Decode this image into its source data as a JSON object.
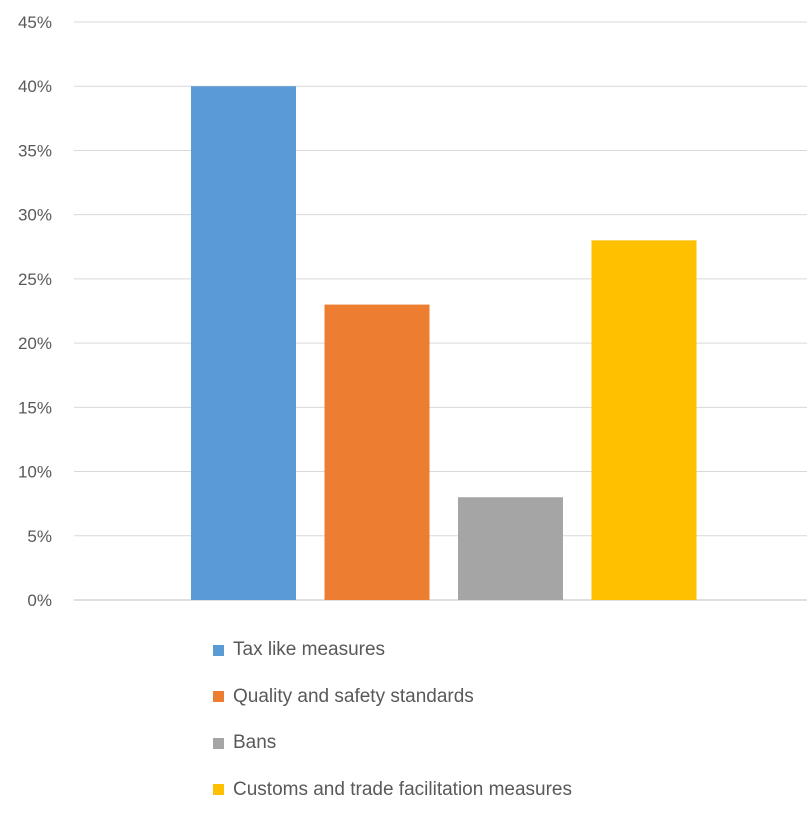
{
  "chart_data": {
    "type": "bar",
    "title": "",
    "xlabel": "",
    "ylabel": "",
    "ylim": [
      0,
      45
    ],
    "y_ticks": [
      0,
      5,
      10,
      15,
      20,
      25,
      30,
      35,
      40,
      45
    ],
    "y_tick_format": "%",
    "grid": true,
    "legend_position": "bottom",
    "series": [
      {
        "name": "Tax like measures",
        "value": 40,
        "color": "#5B9BD5"
      },
      {
        "name": "Quality and safety standards",
        "value": 23,
        "color": "#ED7D31"
      },
      {
        "name": "Bans",
        "value": 8,
        "color": "#A5A5A5"
      },
      {
        "name": "Customs and trade facilitation measures",
        "value": 28,
        "color": "#FFC000"
      }
    ]
  }
}
